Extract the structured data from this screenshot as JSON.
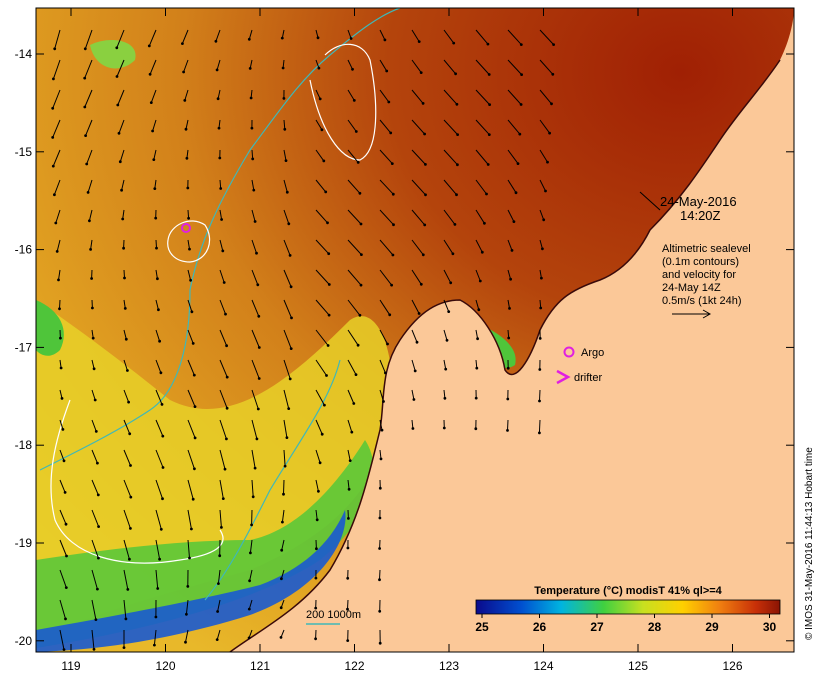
{
  "map": {
    "date_line1": "24-May-2016",
    "date_line2": "14:20Z",
    "info_lines": [
      "Altimetric sealevel",
      "(0.1m contours)",
      "and velocity for",
      "24-May 14Z",
      "0.5m/s (1kt 24h)"
    ],
    "legend": {
      "argo": "Argo",
      "drifter": "drifter"
    },
    "scale_label": "200  1000m",
    "colorbar": {
      "title": "Temperature (°C) modisT 41% ql>=4",
      "ticks": [
        "25",
        "26",
        "27",
        "28",
        "29",
        "30"
      ]
    },
    "credit": "© IMOS 31-May-2016 11:44:13 Hobart time",
    "lon_ticks": [
      "119",
      "120",
      "121",
      "122",
      "123",
      "124",
      "125",
      "126"
    ],
    "lat_ticks": [
      "-14",
      "-15",
      "-16",
      "-17",
      "-18",
      "-19",
      "-20"
    ],
    "colors": {
      "land": "#fbc898",
      "warm": "#a82a08",
      "ocean_mid": "#d9861a",
      "cool_green": "#4fc53a",
      "cold_blue": "#1a3a9c",
      "isobath": "#3fb8b8",
      "contour": "#ffffff",
      "argo": "#e020e0"
    }
  }
}
